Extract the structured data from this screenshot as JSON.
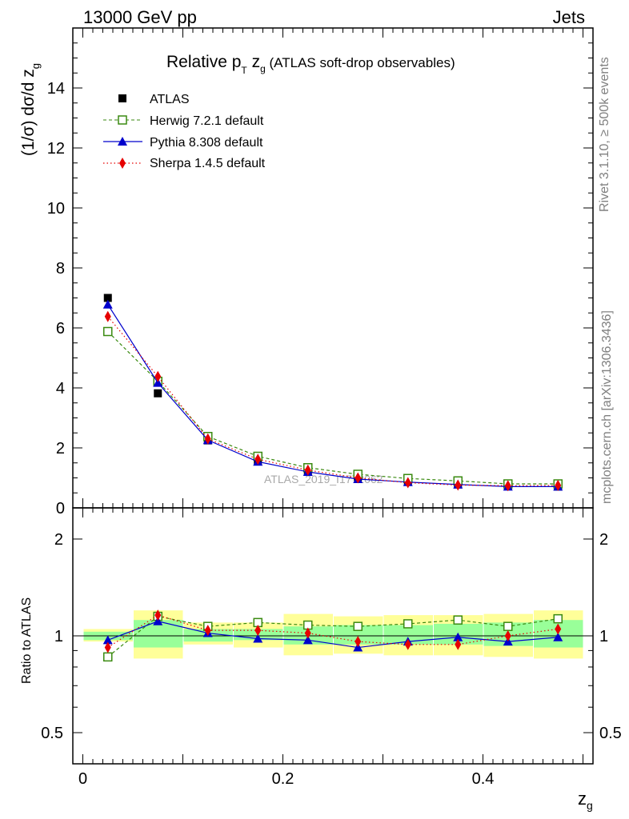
{
  "header": {
    "left_label": "13000 GeV pp",
    "right_label": "Jets"
  },
  "side_labels": {
    "upper": "Rivet 3.1.10, ≥ 500k events",
    "lower": "mcplots.cern.ch [arXiv:1306.3436]"
  },
  "chart_data": [
    {
      "type": "line",
      "panel": "main",
      "title_parts": {
        "relative": "Relative p",
        "sub_t": "T",
        "z": " z",
        "sub_g": "g",
        "rest": " (ATLAS soft-drop observables)"
      },
      "ylabel_parts": {
        "main": "(1/σ) dσ/d z",
        "sub": "g"
      },
      "watermark": "ATLAS_2019_I1772062",
      "ylim": [
        0,
        16
      ],
      "yticks": [
        0,
        2,
        4,
        6,
        8,
        10,
        12,
        14
      ],
      "ytick_labels": [
        "0",
        "2",
        "4",
        "6",
        "8",
        "10",
        "12",
        "14"
      ],
      "xlim": [
        -0.01,
        0.51
      ],
      "x": [
        0.025,
        0.075,
        0.125,
        0.175,
        0.225,
        0.275,
        0.325,
        0.375,
        0.425,
        0.475
      ],
      "series": [
        {
          "name": "ATLAS",
          "key": "atlas",
          "marker": "square",
          "color": "#000000",
          "values": [
            7.0,
            3.82,
            2.25,
            1.58,
            1.24,
            1.03,
            0.88,
            0.78,
            0.73,
            0.71
          ]
        },
        {
          "name": "Herwig 7.2.1 default",
          "key": "herwig",
          "marker": "open-square",
          "color": "#3a8a10",
          "dash": "dashed",
          "values": [
            5.88,
            4.22,
            2.38,
            1.72,
            1.34,
            1.12,
            0.98,
            0.9,
            0.8,
            0.8
          ]
        },
        {
          "name": "Pythia 8.308 default",
          "key": "pythia",
          "marker": "triangle",
          "color": "#0000cc",
          "dash": "solid",
          "values": [
            6.78,
            4.17,
            2.26,
            1.54,
            1.2,
            0.96,
            0.86,
            0.78,
            0.71,
            0.71
          ]
        },
        {
          "name": "Sherpa 1.4.5 default",
          "key": "sherpa",
          "marker": "diamond",
          "color": "#e60000",
          "dash": "dotted",
          "values": [
            6.38,
            4.38,
            2.3,
            1.62,
            1.26,
            1.0,
            0.84,
            0.76,
            0.74,
            0.75
          ]
        }
      ],
      "legend_position": "top-left"
    },
    {
      "type": "line",
      "panel": "ratio",
      "ylabel": "Ratio to ATLAS",
      "xlabel_parts": {
        "main": "z",
        "sub": "g"
      },
      "ylim_log": [
        0.4,
        2.5
      ],
      "yticks": [
        0.5,
        1,
        2
      ],
      "ytick_labels": [
        "0.5",
        "1",
        "2"
      ],
      "xticks": [
        0,
        0.2,
        0.4
      ],
      "xtick_labels": [
        "0",
        "0.2",
        "0.4"
      ],
      "x_edges": [
        0.0,
        0.05,
        0.1,
        0.15,
        0.2,
        0.25,
        0.3,
        0.35,
        0.4,
        0.45,
        0.5
      ],
      "bands": {
        "green": {
          "lo": [
            0.97,
            0.92,
            0.96,
            0.97,
            0.94,
            0.94,
            0.94,
            0.94,
            0.93,
            0.92
          ],
          "hi": [
            1.03,
            1.12,
            1.05,
            1.05,
            1.07,
            1.08,
            1.08,
            1.09,
            1.1,
            1.12
          ]
        },
        "yellow": {
          "lo": [
            0.96,
            0.85,
            0.94,
            0.92,
            0.87,
            0.88,
            0.87,
            0.87,
            0.86,
            0.85
          ],
          "hi": [
            1.05,
            1.2,
            1.1,
            1.1,
            1.17,
            1.15,
            1.16,
            1.16,
            1.17,
            1.2
          ]
        }
      },
      "series": [
        {
          "name": "Herwig 7.2.1 default",
          "key": "herwig",
          "marker": "open-square",
          "color": "#3a8a10",
          "dash": "dashed",
          "values": [
            0.86,
            1.15,
            1.07,
            1.1,
            1.08,
            1.07,
            1.09,
            1.12,
            1.07,
            1.13
          ]
        },
        {
          "name": "Pythia 8.308 default",
          "key": "pythia",
          "marker": "triangle",
          "color": "#0000cc",
          "dash": "solid",
          "values": [
            0.97,
            1.11,
            1.02,
            0.98,
            0.97,
            0.92,
            0.96,
            0.99,
            0.96,
            0.99
          ]
        },
        {
          "name": "Sherpa 1.4.5 default",
          "key": "sherpa",
          "marker": "diamond",
          "color": "#e60000",
          "dash": "dotted",
          "values": [
            0.92,
            1.16,
            1.04,
            1.04,
            1.02,
            0.96,
            0.94,
            0.94,
            1.0,
            1.05
          ]
        }
      ]
    }
  ]
}
